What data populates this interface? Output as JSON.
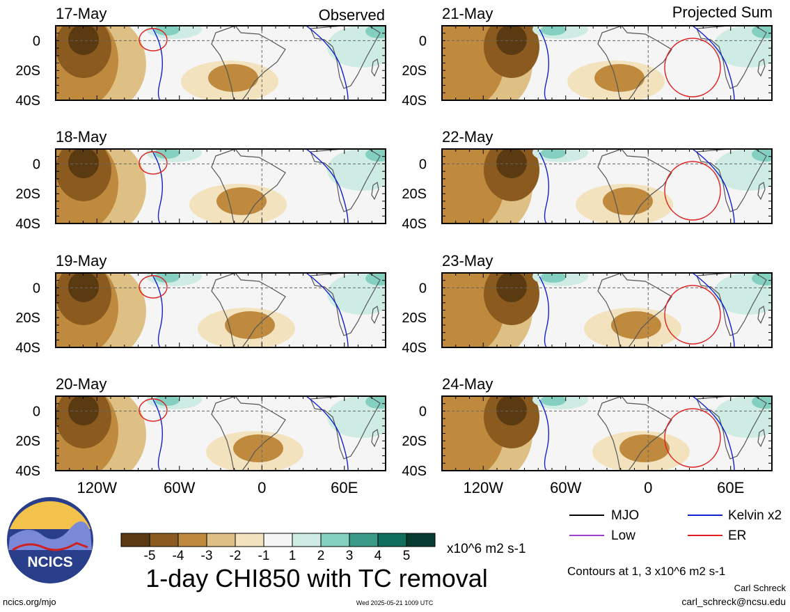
{
  "headers": {
    "observed": "Observed",
    "projected": "Projected Sum"
  },
  "panels": [
    {
      "date": "17-May"
    },
    {
      "date": "18-May"
    },
    {
      "date": "19-May"
    },
    {
      "date": "20-May"
    },
    {
      "date": "21-May"
    },
    {
      "date": "22-May"
    },
    {
      "date": "23-May"
    },
    {
      "date": "24-May"
    }
  ],
  "lat_ticks": [
    "0",
    "20S",
    "40S"
  ],
  "lon_ticks": [
    "120W",
    "60W",
    "0",
    "60E"
  ],
  "colorbar": {
    "labels": [
      "-5",
      "-4",
      "-3",
      "-2",
      "-1",
      "1",
      "2",
      "3",
      "4",
      "5"
    ],
    "colors": [
      "#5a3a10",
      "#8a5a1e",
      "#bf8a3e",
      "#dfc084",
      "#f3e2be",
      "#f5f5f5",
      "#cfece4",
      "#84d0c0",
      "#3a9c88",
      "#0f6e5c",
      "#053b30"
    ],
    "units": "x10^6 m2 s-1"
  },
  "title": "1-day CHI850 with TC removal",
  "legend": [
    {
      "label": "MJO",
      "color": "#000000"
    },
    {
      "label": "Kelvin x2",
      "color": "#1020d0"
    },
    {
      "label": "Low",
      "color": "#a040d0"
    },
    {
      "label": "ER",
      "color": "#e02020"
    }
  ],
  "contours_note": "Contours at 1, 3 x10^6 m2 s-1",
  "logo_text": "NCICS",
  "url": "ncics.org/mjo",
  "timestamp": "Wed 2025-05-21 1009 UTC",
  "author": "Carl Schreck",
  "email": "carl_schreck@ncsu.edu"
}
